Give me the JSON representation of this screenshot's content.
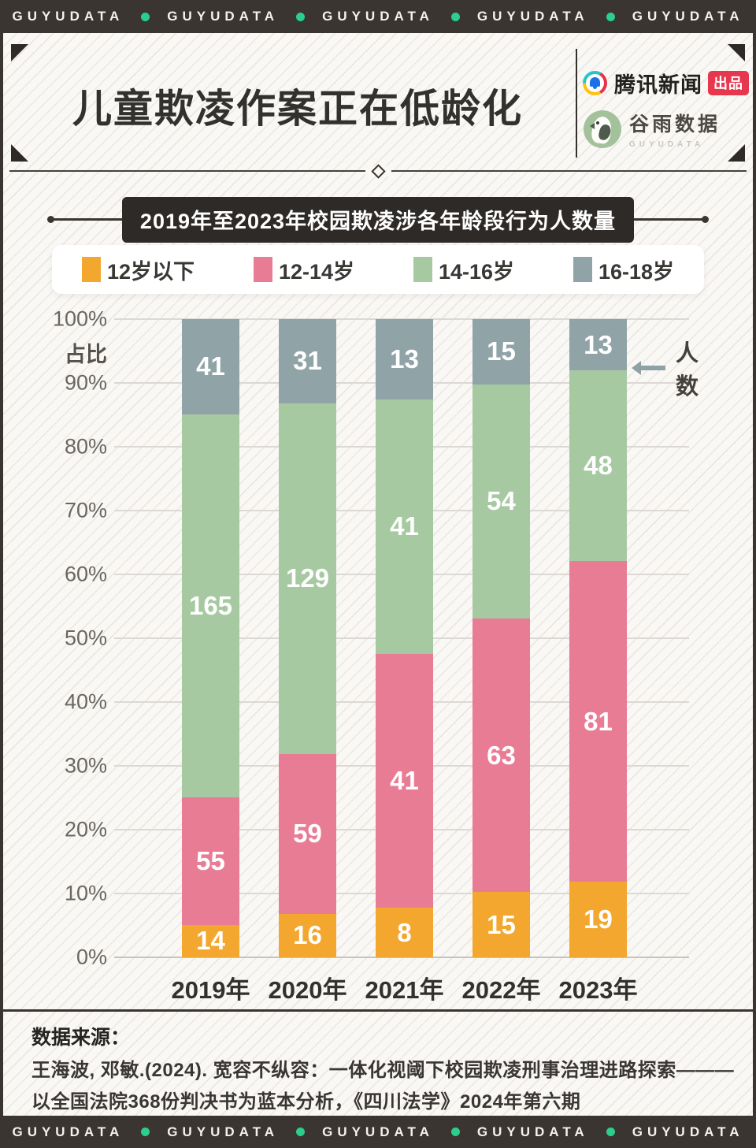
{
  "banner": {
    "brand": "GUYUDATA",
    "repeat": 5
  },
  "header": {
    "title": "儿童欺凌作案正在低龄化",
    "tencent_logo": {
      "name": "腾讯新闻",
      "badge": "出品"
    },
    "guyu_logo": {
      "name": "谷雨数据",
      "subtext": "GUYUDATA"
    }
  },
  "chart": {
    "title": "2019年至2023年校园欺凌涉各年龄段行为人数量",
    "ylabel": "占比",
    "annotation": "人数"
  },
  "chart_data": {
    "type": "bar",
    "variant": "stacked-percent",
    "title": "2019年至2023年校园欺凌涉各年龄段行为人数量",
    "categories": [
      "2019年",
      "2020年",
      "2021年",
      "2022年",
      "2023年"
    ],
    "series": [
      {
        "name": "12岁以下",
        "color": "#F3A72E",
        "values": [
          14,
          16,
          8,
          15,
          19
        ]
      },
      {
        "name": "12-14岁",
        "color": "#E97C95",
        "values": [
          55,
          59,
          41,
          63,
          81
        ]
      },
      {
        "name": "14-16岁",
        "color": "#A6C9A1",
        "values": [
          165,
          129,
          41,
          54,
          48
        ]
      },
      {
        "name": "16-18岁",
        "color": "#90A4A7",
        "values": [
          41,
          31,
          13,
          15,
          13
        ]
      }
    ],
    "yticks": [
      "100%",
      "90%",
      "80%",
      "70%",
      "60%",
      "50%",
      "40%",
      "30%",
      "20%",
      "10%",
      "0%"
    ],
    "ylim": [
      0,
      100
    ],
    "ylabel": "占比",
    "grid": true,
    "legend_position": "top",
    "annotation": "人数"
  },
  "footer": {
    "source_label": "数据来源：",
    "source_lines": [
      "王海波, 邓敏.(2024). 宽容不纵容：一体化视阈下校园欺凌刑事治理进路探索———",
      "以全国法院368份判决书为蓝本分析，《四川法学》2024年第六期"
    ]
  },
  "colors": {
    "banner_bg": "#3A3530",
    "banner_dot": "#2BCE8C",
    "page_bg": "#FAF8F5",
    "ink": "#2E2A27",
    "badge_red": "#E6374F",
    "tencent_blue": "#1C6FE8",
    "guyu_green": "#A3C29C",
    "gridline": "#DDD8D3"
  }
}
